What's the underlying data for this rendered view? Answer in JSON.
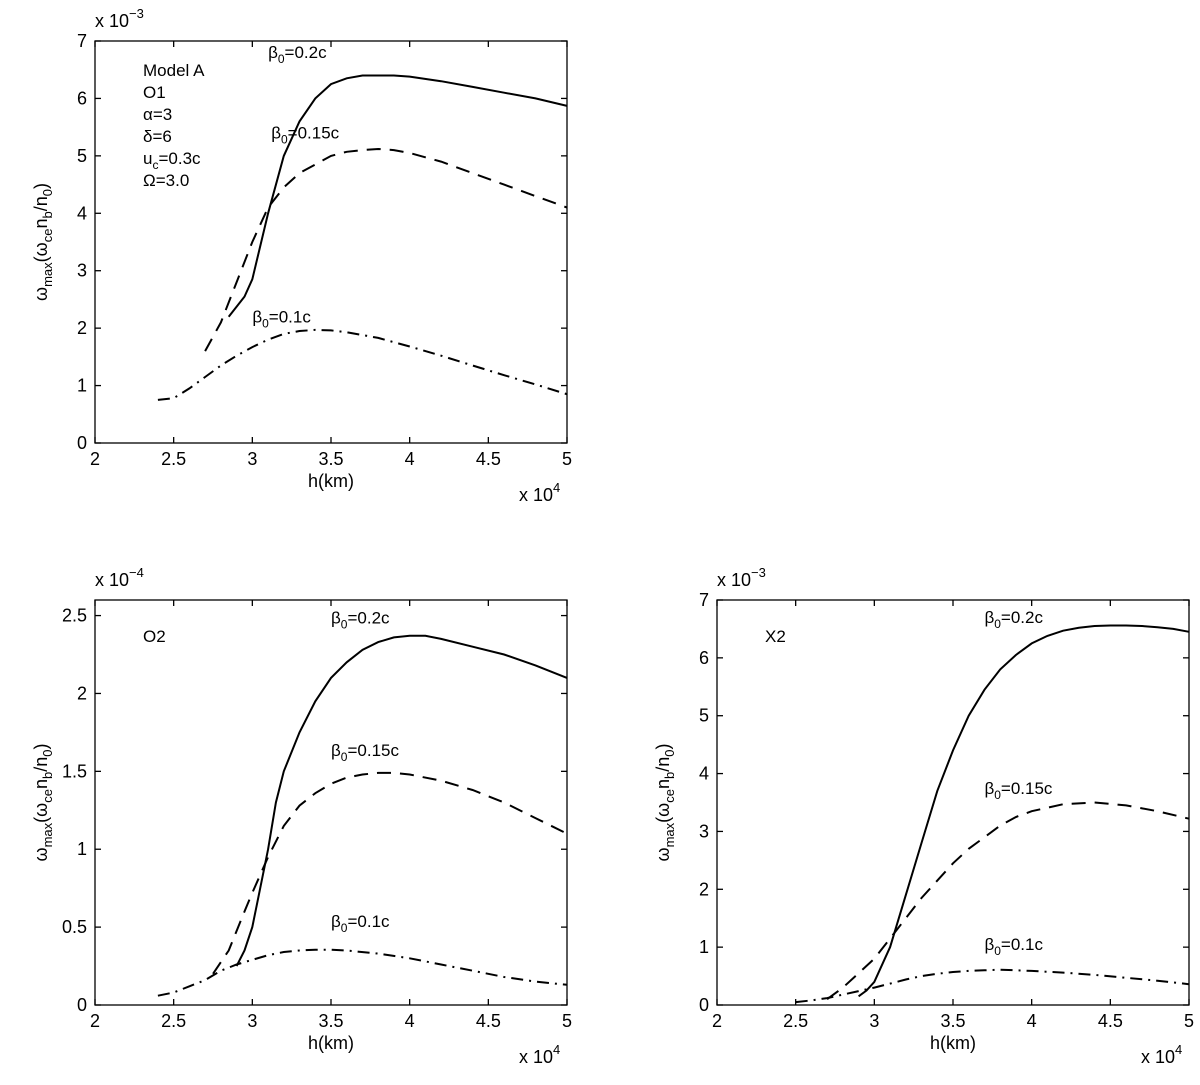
{
  "chart_data": [
    {
      "type": "line",
      "exponent_label": "x 10",
      "exponent_power": "−3",
      "x_exponent_label": "x 10",
      "x_exponent_power": "4",
      "xlabel": "h(km)",
      "ylabel": {
        "main": "ω",
        "sub1": "max",
        "mid1": "(ω",
        "sub2": "ce",
        "mid2": "n",
        "sub3": "b",
        "mid3": "/n",
        "sub4": "0",
        "end": ")"
      },
      "xlim": [
        2,
        5
      ],
      "ylim": [
        0,
        7
      ],
      "xticks": [
        "2",
        "2.5",
        "3",
        "3.5",
        "4",
        "4.5",
        "5"
      ],
      "yticks": [
        "0",
        "1",
        "2",
        "3",
        "4",
        "5",
        "6",
        "7"
      ],
      "annotation_lines": [
        "Model A",
        "O1",
        "α=3",
        "δ=6",
        "u",
        "c",
        "=0.3c",
        "Ω=3.0"
      ],
      "series": [
        {
          "name": "β0=0.2c",
          "label_main": "β",
          "label_sub": "0",
          "label_rest": "=0.2c",
          "style": "solid",
          "x": [
            2.85,
            2.95,
            3.0,
            3.1,
            3.2,
            3.3,
            3.4,
            3.5,
            3.6,
            3.7,
            3.8,
            3.9,
            4.0,
            4.2,
            4.4,
            4.6,
            4.8,
            5.0
          ],
          "y": [
            2.2,
            2.55,
            2.85,
            4.0,
            5.0,
            5.6,
            6.0,
            6.25,
            6.35,
            6.4,
            6.4,
            6.4,
            6.38,
            6.3,
            6.2,
            6.1,
            6.0,
            5.87
          ]
        },
        {
          "name": "β0=0.15c",
          "label_main": "β",
          "label_sub": "0",
          "label_rest": "=0.15c",
          "style": "dashed",
          "x": [
            2.7,
            2.8,
            2.9,
            3.0,
            3.1,
            3.2,
            3.3,
            3.4,
            3.5,
            3.6,
            3.7,
            3.8,
            3.9,
            4.0,
            4.2,
            4.4,
            4.6,
            4.8,
            5.0
          ],
          "y": [
            1.6,
            2.1,
            2.8,
            3.5,
            4.1,
            4.45,
            4.7,
            4.85,
            5.0,
            5.07,
            5.1,
            5.12,
            5.1,
            5.05,
            4.9,
            4.7,
            4.5,
            4.3,
            4.1
          ]
        },
        {
          "name": "β0=0.1c",
          "label_main": "β",
          "label_sub": "0",
          "label_rest": "=0.1c",
          "style": "dashdot",
          "x": [
            2.4,
            2.5,
            2.6,
            2.7,
            2.8,
            2.9,
            3.0,
            3.1,
            3.2,
            3.3,
            3.4,
            3.5,
            3.6,
            3.8,
            4.0,
            4.2,
            4.4,
            4.6,
            4.8,
            5.0
          ],
          "y": [
            0.75,
            0.78,
            0.95,
            1.15,
            1.35,
            1.52,
            1.67,
            1.8,
            1.9,
            1.95,
            1.97,
            1.96,
            1.93,
            1.83,
            1.68,
            1.52,
            1.35,
            1.18,
            1.02,
            0.85
          ]
        }
      ],
      "label_positions_data": [
        [
          3.1,
          6.7
        ],
        [
          3.12,
          5.3
        ],
        [
          3.0,
          2.1
        ]
      ]
    },
    {
      "type": "line",
      "exponent_label": "x 10",
      "exponent_power": "−4",
      "x_exponent_label": "x 10",
      "x_exponent_power": "4",
      "xlabel": "h(km)",
      "ylabel": {
        "main": "ω",
        "sub1": "max",
        "mid1": "(ω",
        "sub2": "ce",
        "mid2": "n",
        "sub3": "b",
        "mid3": "/n",
        "sub4": "0",
        "end": ")"
      },
      "xlim": [
        2,
        5
      ],
      "ylim": [
        0,
        2.6
      ],
      "xticks": [
        "2",
        "2.5",
        "3",
        "3.5",
        "4",
        "4.5",
        "5"
      ],
      "yticks": [
        "0",
        "0.5",
        "1",
        "1.5",
        "2",
        "2.5"
      ],
      "annotation_lines": [
        "O2"
      ],
      "series": [
        {
          "name": "β0=0.2c",
          "label_main": "β",
          "label_sub": "0",
          "label_rest": "=0.2c",
          "style": "solid",
          "x": [
            2.9,
            2.95,
            3.0,
            3.05,
            3.1,
            3.15,
            3.2,
            3.3,
            3.4,
            3.5,
            3.6,
            3.7,
            3.8,
            3.9,
            4.0,
            4.1,
            4.2,
            4.4,
            4.6,
            4.8,
            5.0
          ],
          "y": [
            0.25,
            0.35,
            0.5,
            0.75,
            1.0,
            1.3,
            1.5,
            1.75,
            1.95,
            2.1,
            2.2,
            2.28,
            2.33,
            2.36,
            2.37,
            2.37,
            2.35,
            2.3,
            2.25,
            2.18,
            2.1
          ]
        },
        {
          "name": "β0=0.15c",
          "label_main": "β",
          "label_sub": "0",
          "label_rest": "=0.15c",
          "style": "dashed",
          "x": [
            2.75,
            2.85,
            2.95,
            3.0,
            3.1,
            3.2,
            3.3,
            3.4,
            3.5,
            3.6,
            3.7,
            3.8,
            3.9,
            4.0,
            4.2,
            4.4,
            4.6,
            4.8,
            5.0
          ],
          "y": [
            0.2,
            0.35,
            0.6,
            0.72,
            0.95,
            1.15,
            1.28,
            1.36,
            1.42,
            1.46,
            1.48,
            1.49,
            1.49,
            1.48,
            1.44,
            1.38,
            1.3,
            1.2,
            1.1
          ]
        },
        {
          "name": "β0=0.1c",
          "label_main": "β",
          "label_sub": "0",
          "label_rest": "=0.1c",
          "style": "dashdot",
          "x": [
            2.4,
            2.5,
            2.6,
            2.7,
            2.8,
            2.9,
            3.0,
            3.1,
            3.2,
            3.3,
            3.4,
            3.5,
            3.6,
            3.8,
            4.0,
            4.2,
            4.4,
            4.6,
            4.8,
            5.0
          ],
          "y": [
            0.06,
            0.08,
            0.12,
            0.16,
            0.22,
            0.26,
            0.29,
            0.32,
            0.34,
            0.35,
            0.355,
            0.355,
            0.35,
            0.33,
            0.3,
            0.26,
            0.22,
            0.18,
            0.15,
            0.13
          ]
        }
      ],
      "label_positions_data": [
        [
          3.5,
          2.45
        ],
        [
          3.5,
          1.6
        ],
        [
          3.5,
          0.5
        ]
      ]
    },
    {
      "type": "line",
      "exponent_label": "x 10",
      "exponent_power": "−3",
      "x_exponent_label": "x 10",
      "x_exponent_power": "4",
      "xlabel": "h(km)",
      "ylabel": {
        "main": "ω",
        "sub1": "max",
        "mid1": "(ω",
        "sub2": "ce",
        "mid2": "n",
        "sub3": "b",
        "mid3": "/n",
        "sub4": "0",
        "end": ")"
      },
      "xlim": [
        2,
        5
      ],
      "ylim": [
        0,
        7
      ],
      "xticks": [
        "2",
        "2.5",
        "3",
        "3.5",
        "4",
        "4.5",
        "5"
      ],
      "yticks": [
        "0",
        "1",
        "2",
        "3",
        "4",
        "5",
        "6",
        "7"
      ],
      "annotation_lines": [
        "X2"
      ],
      "series": [
        {
          "name": "β0=0.2c",
          "label_main": "β",
          "label_sub": "0",
          "label_rest": "=0.2c",
          "style": "solid",
          "x": [
            2.9,
            2.95,
            3.0,
            3.1,
            3.2,
            3.3,
            3.4,
            3.5,
            3.6,
            3.7,
            3.8,
            3.9,
            4.0,
            4.1,
            4.2,
            4.3,
            4.4,
            4.5,
            4.6,
            4.7,
            4.8,
            4.9,
            5.0
          ],
          "y": [
            0.15,
            0.25,
            0.4,
            1.0,
            1.9,
            2.8,
            3.7,
            4.4,
            5.0,
            5.45,
            5.8,
            6.05,
            6.25,
            6.38,
            6.47,
            6.52,
            6.55,
            6.56,
            6.56,
            6.55,
            6.53,
            6.5,
            6.45
          ]
        },
        {
          "name": "β0=0.15c",
          "label_main": "β",
          "label_sub": "0",
          "label_rest": "=0.15c",
          "style": "dashed",
          "x": [
            2.7,
            2.8,
            2.9,
            3.0,
            3.1,
            3.2,
            3.3,
            3.4,
            3.5,
            3.6,
            3.7,
            3.8,
            3.9,
            4.0,
            4.2,
            4.4,
            4.6,
            4.8,
            5.0
          ],
          "y": [
            0.1,
            0.3,
            0.55,
            0.8,
            1.15,
            1.5,
            1.85,
            2.15,
            2.45,
            2.7,
            2.9,
            3.1,
            3.25,
            3.35,
            3.47,
            3.5,
            3.45,
            3.35,
            3.22
          ]
        },
        {
          "name": "β0=0.1c",
          "label_main": "β",
          "label_sub": "0",
          "label_rest": "=0.1c",
          "style": "dashdot",
          "x": [
            2.5,
            2.6,
            2.7,
            2.8,
            2.9,
            3.0,
            3.1,
            3.2,
            3.3,
            3.4,
            3.5,
            3.6,
            3.7,
            3.8,
            3.9,
            4.0,
            4.2,
            4.4,
            4.6,
            4.8,
            5.0
          ],
          "y": [
            0.05,
            0.08,
            0.12,
            0.18,
            0.24,
            0.3,
            0.37,
            0.44,
            0.5,
            0.54,
            0.57,
            0.59,
            0.6,
            0.61,
            0.6,
            0.59,
            0.56,
            0.52,
            0.47,
            0.42,
            0.36
          ]
        }
      ],
      "label_positions_data": [
        [
          3.7,
          6.6
        ],
        [
          3.7,
          3.65
        ],
        [
          3.7,
          0.95
        ]
      ]
    }
  ]
}
